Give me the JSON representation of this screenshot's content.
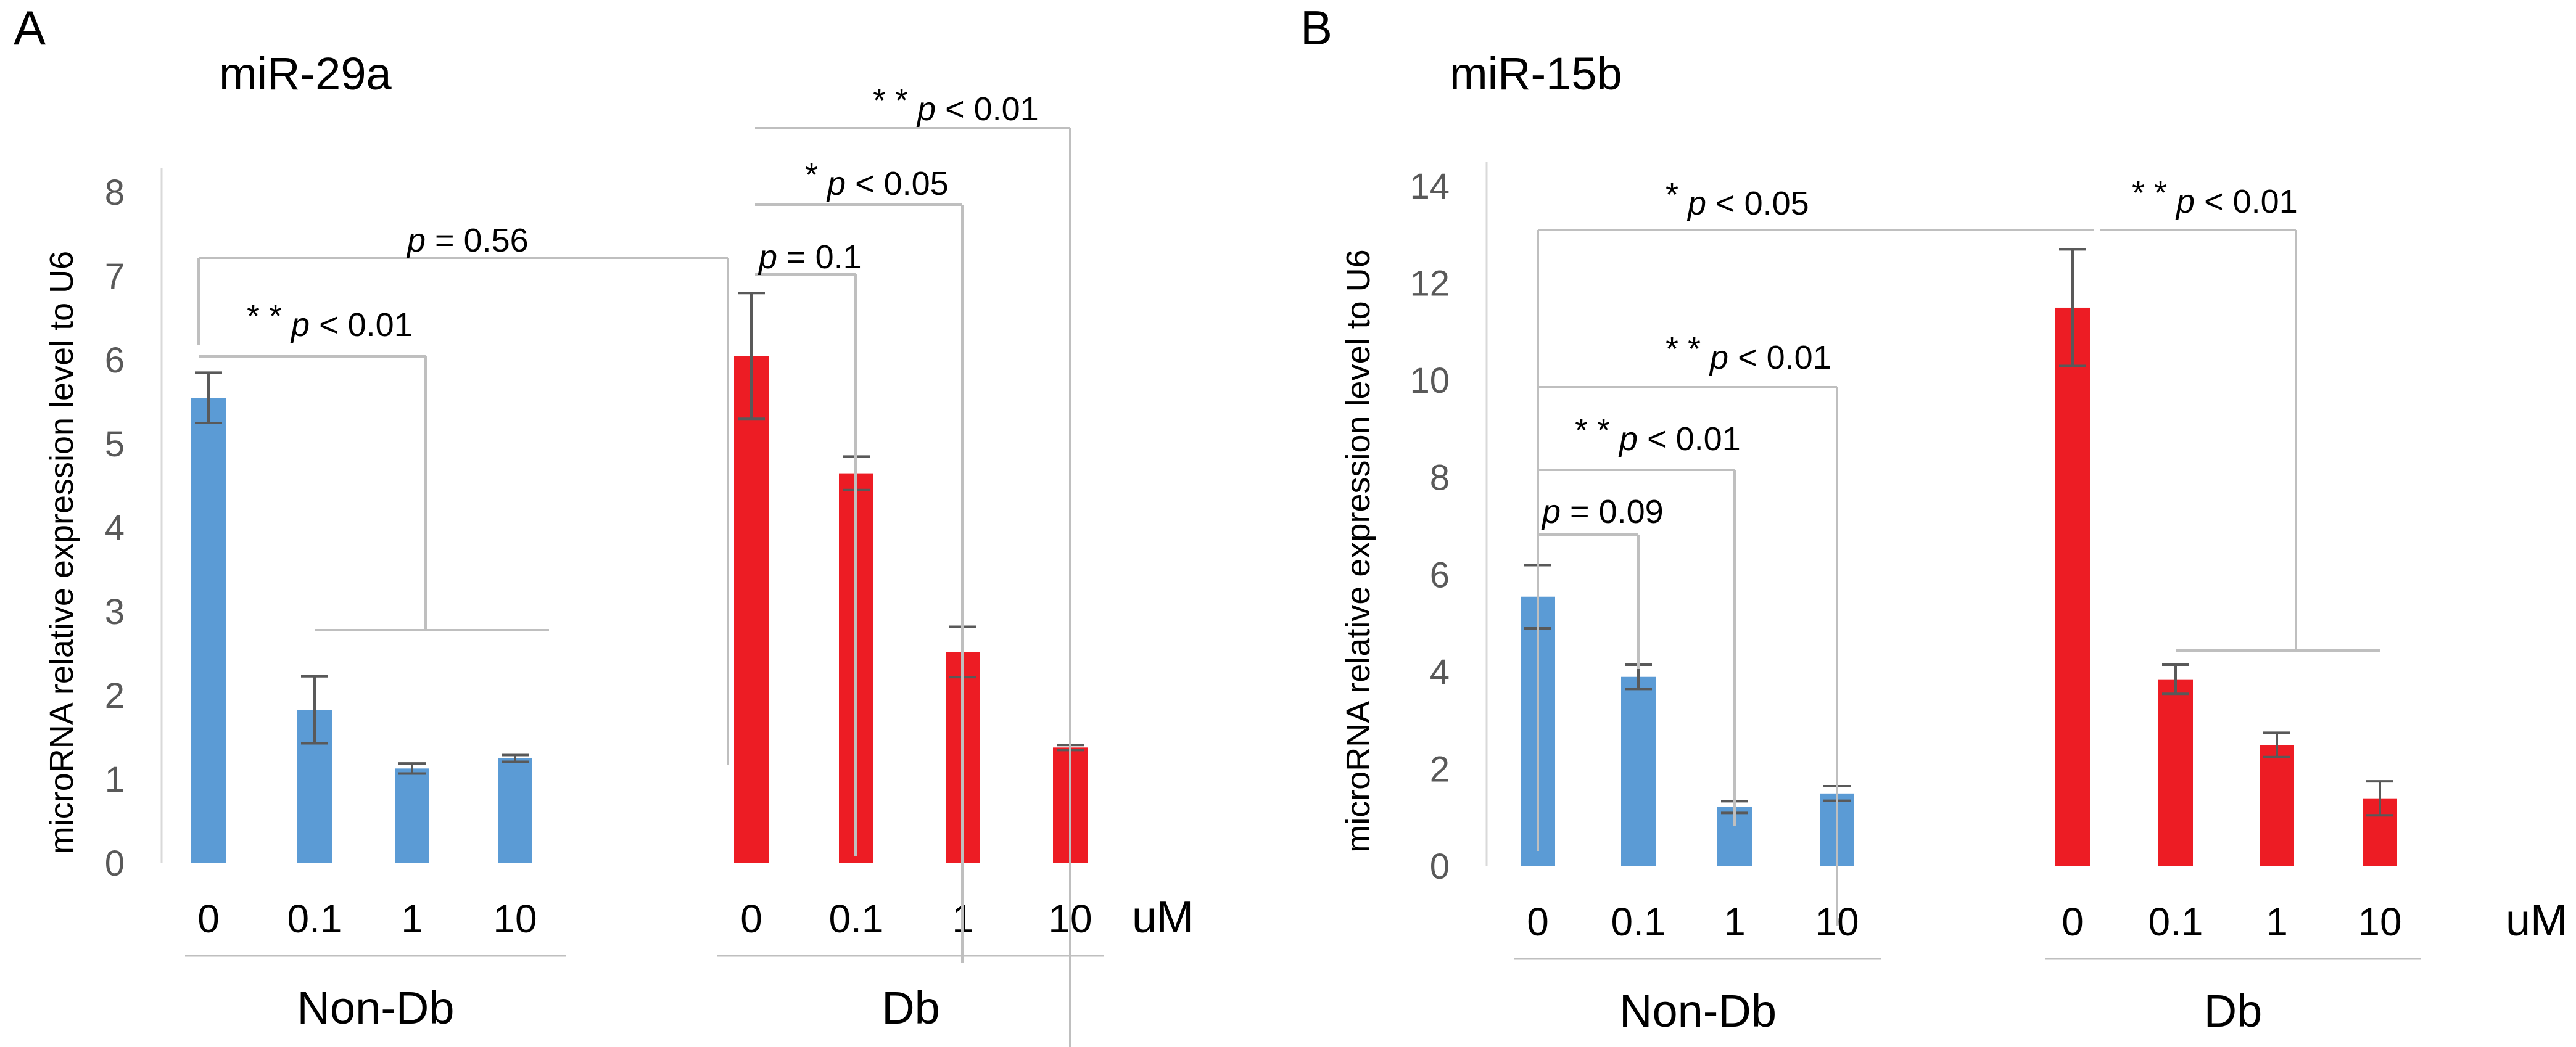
{
  "panels": [
    {
      "letter": "A"
    },
    {
      "letter": "B"
    }
  ],
  "chart_data": [
    {
      "type": "bar",
      "panel": "A",
      "title": "miR-29a",
      "ylabel": "microRNA relative expression level to U6",
      "xlabel": "uM",
      "ylim": [
        0,
        8
      ],
      "yticks": [
        0,
        1,
        2,
        3,
        4,
        5,
        6,
        7,
        8
      ],
      "groups": [
        {
          "name": "Non-Db",
          "color": "#5B9BD5",
          "categories": [
            "0",
            "0.1",
            "1",
            "10"
          ],
          "values": [
            5.55,
            1.83,
            1.13,
            1.25
          ],
          "errors": [
            0.3,
            0.4,
            0.06,
            0.04
          ]
        },
        {
          "name": "Db",
          "color": "#ED1C24",
          "categories": [
            "0",
            "0.1",
            "1",
            "10"
          ],
          "values": [
            6.05,
            4.65,
            2.52,
            1.38
          ],
          "errors": [
            0.75,
            0.2,
            0.3,
            0.03
          ]
        }
      ],
      "annotations": [
        {
          "text": "* *",
          "p": "p",
          "rel": "< 0.01"
        },
        {
          "text": "",
          "p": "p",
          "rel": "= 0.56"
        },
        {
          "text": "",
          "p": "p",
          "rel": "= 0.1"
        },
        {
          "text": "*",
          "p": "p",
          "rel": "< 0.05"
        },
        {
          "text": "* *",
          "p": "p",
          "rel": "< 0.01"
        }
      ]
    },
    {
      "type": "bar",
      "panel": "B",
      "title": "miR-15b",
      "ylabel": "microRNA relative expression level to U6",
      "xlabel": "uM",
      "ylim": [
        0,
        14
      ],
      "yticks": [
        0,
        2,
        4,
        6,
        8,
        10,
        12,
        14
      ],
      "groups": [
        {
          "name": "Non-Db",
          "color": "#5B9BD5",
          "categories": [
            "0",
            "0.1",
            "1",
            "10"
          ],
          "values": [
            5.55,
            3.9,
            1.22,
            1.5
          ],
          "errors": [
            0.65,
            0.25,
            0.12,
            0.15
          ]
        },
        {
          "name": "Db",
          "color": "#ED1C24",
          "categories": [
            "0",
            "0.1",
            "1",
            "10"
          ],
          "values": [
            11.5,
            3.85,
            2.5,
            1.4
          ],
          "errors": [
            1.2,
            0.3,
            0.25,
            0.35
          ]
        }
      ],
      "annotations": [
        {
          "text": "*",
          "p": "p",
          "rel": "< 0.05"
        },
        {
          "text": "* *",
          "p": "p",
          "rel": "< 0.01"
        },
        {
          "text": "* *",
          "p": "p",
          "rel": "< 0.01"
        },
        {
          "text": "",
          "p": "p",
          "rel": "= 0.09"
        },
        {
          "text": "* *",
          "p": "p",
          "rel": "< 0.01"
        }
      ]
    }
  ]
}
